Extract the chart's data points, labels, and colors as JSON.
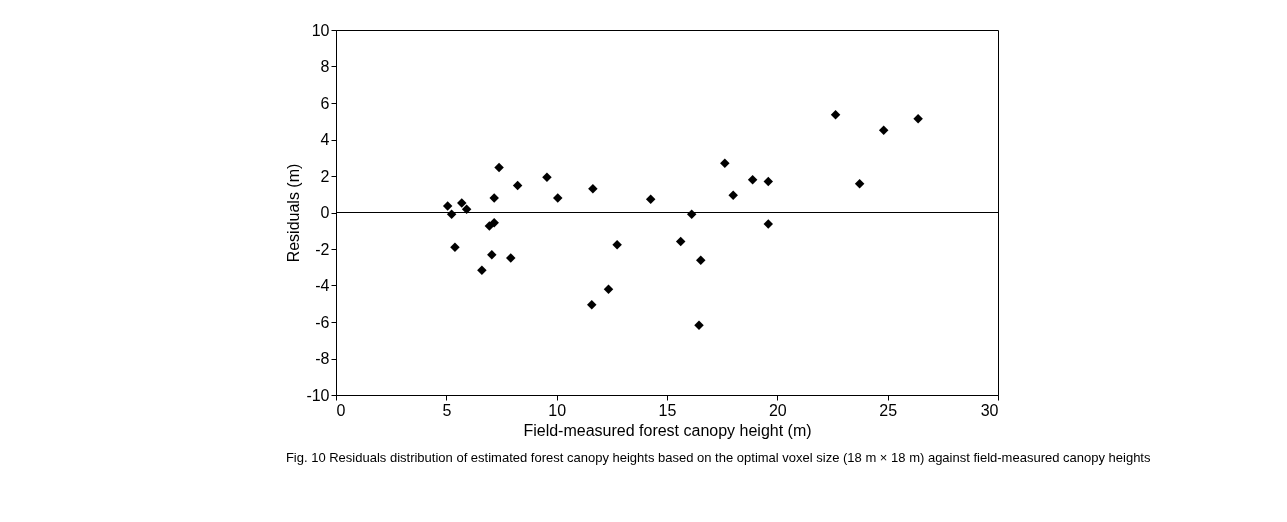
{
  "chart_data": {
    "type": "scatter",
    "xlabel": "Field-measured forest canopy height (m)",
    "ylabel": "Residuals (m)",
    "x": [
      5.06,
      5.24,
      5.7,
      5.92,
      5.39,
      6.61,
      6.95,
      7.17,
      7.06,
      7.17,
      7.39,
      7.92,
      8.23,
      9.56,
      10.05,
      11.64,
      11.59,
      12.35,
      12.74,
      14.26,
      15.62,
      16.12,
      16.53,
      16.45,
      17.62,
      18.0,
      18.88,
      19.59,
      19.59,
      22.64,
      23.73,
      24.82,
      26.38
    ],
    "series": [
      {
        "color": "#000000",
        "values": [
          0.36,
          -0.09,
          0.52,
          0.18,
          -1.91,
          -3.17,
          -0.74,
          -0.56,
          -2.31,
          0.79,
          2.47,
          -2.49,
          1.48,
          1.93,
          0.79,
          1.3,
          -5.05,
          -4.2,
          -1.77,
          0.72,
          -1.59,
          -0.09,
          -2.61,
          -6.18,
          2.7,
          0.94,
          1.8,
          1.7,
          -0.63,
          5.35,
          1.57,
          4.51,
          5.14
        ]
      }
    ],
    "marker": "diamond",
    "grid": false,
    "xlim": [
      0,
      30
    ],
    "xticks": [
      0,
      5,
      10,
      15,
      20,
      25,
      30
    ],
    "ylim": [
      -10,
      10
    ],
    "yticks": [
      -10,
      -8,
      -6,
      -4,
      -2,
      0,
      2,
      4,
      6,
      8,
      10
    ],
    "ref_lines": [
      {
        "axis": "y",
        "value": 0,
        "color": "#000000"
      }
    ],
    "annotations": [
      "Fig. 10 Residuals distribution of estimated forest canopy heights based on the optimal voxel size (18 m × 18 m) against field-measured canopy heights"
    ]
  }
}
